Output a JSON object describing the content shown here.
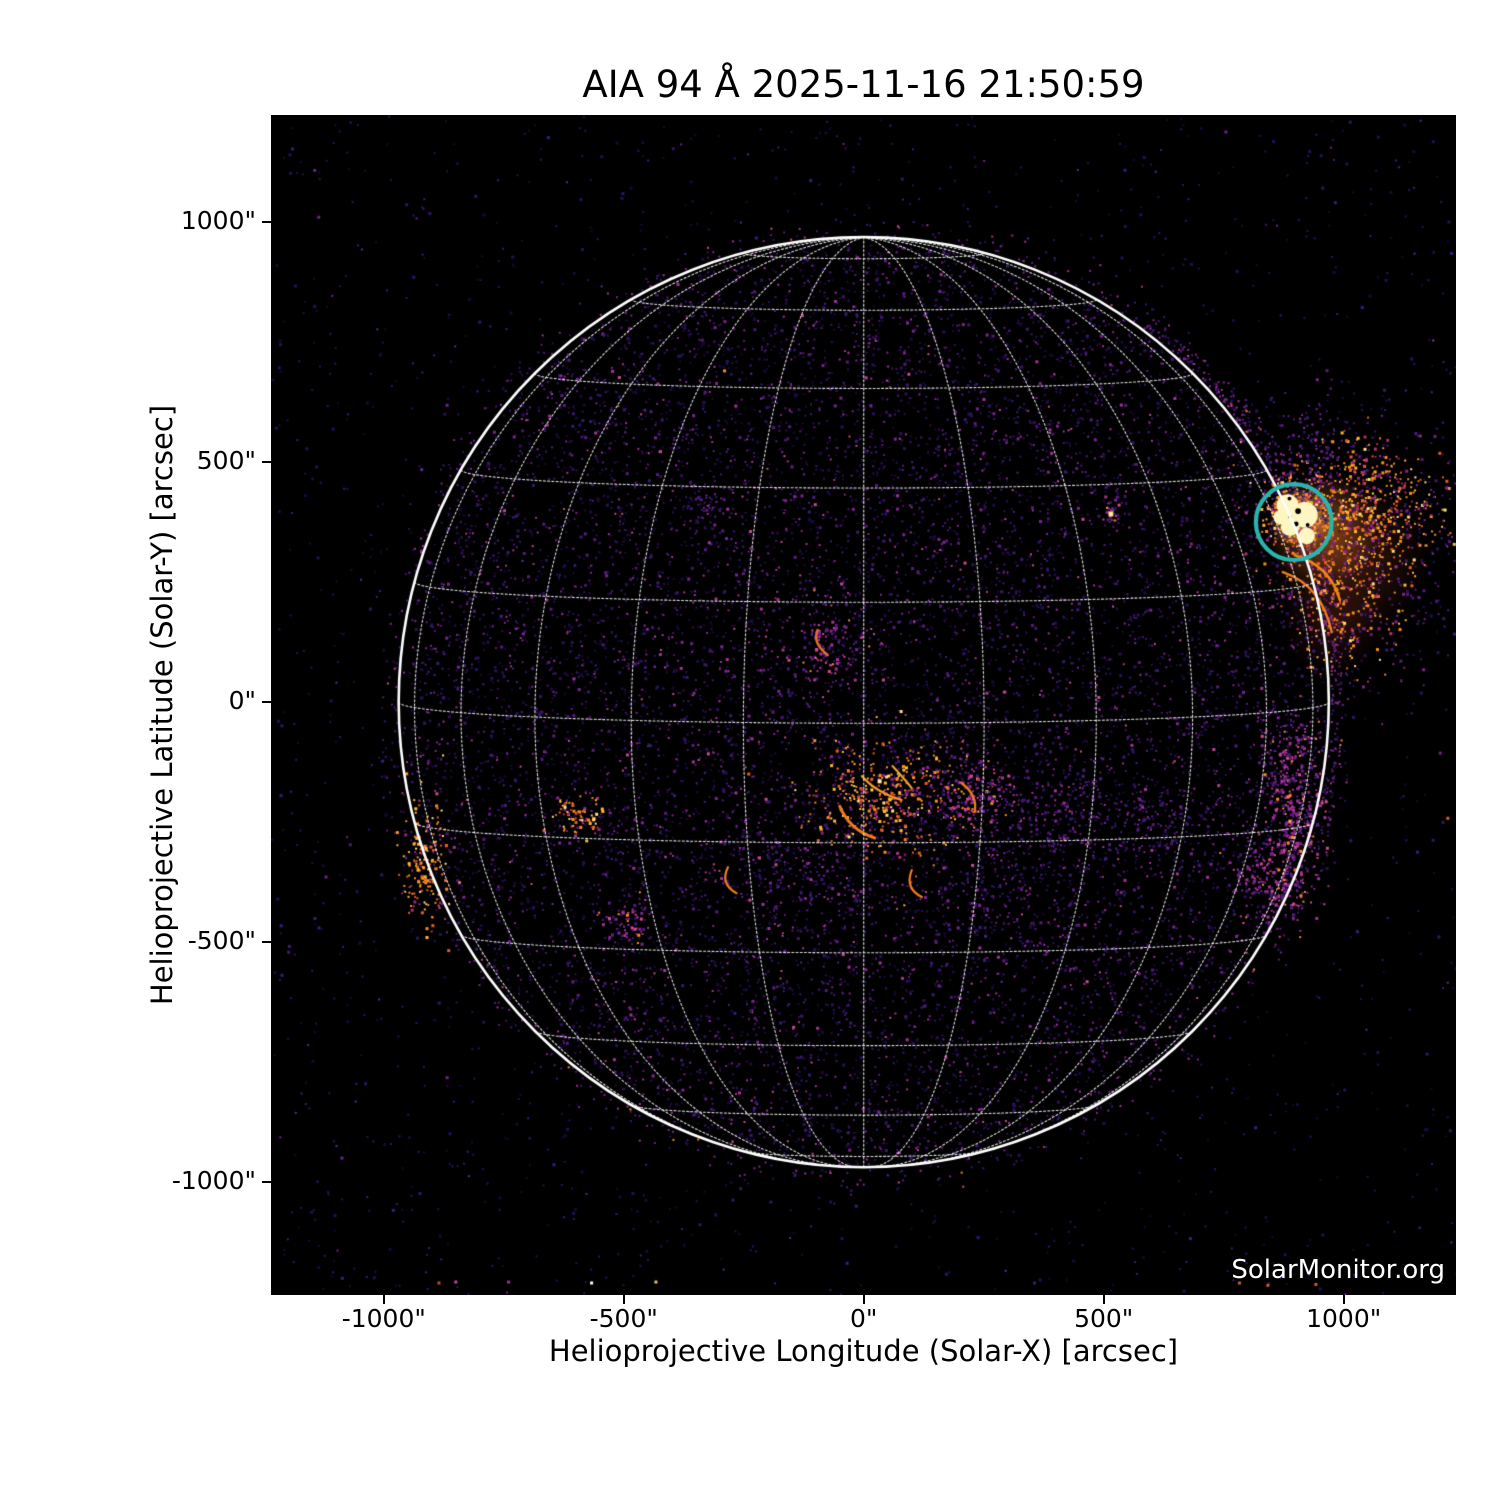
{
  "title": "AIA 94 Å 2025-11-16 21:50:59",
  "watermark": "SolarMonitor.org",
  "axes": {
    "x_label": "Helioprojective Longitude (Solar-X) [arcsec]",
    "y_label": "Helioprojective Latitude (Solar-Y) [arcsec]",
    "x_ticks": [
      {
        "v": -1000,
        "label": "-1000\""
      },
      {
        "v": -500,
        "label": "-500\""
      },
      {
        "v": 0,
        "label": "0\""
      },
      {
        "v": 500,
        "label": "500\""
      },
      {
        "v": 1000,
        "label": "1000\""
      }
    ],
    "y_ticks": [
      {
        "v": 1000,
        "label": "1000\""
      },
      {
        "v": 500,
        "label": "500\""
      },
      {
        "v": 0,
        "label": "0\""
      },
      {
        "v": -500,
        "label": "-500\""
      },
      {
        "v": -1000,
        "label": "-1000\""
      }
    ]
  },
  "colors": {
    "plot_bg": "#000000",
    "grid": "rgba(255,255,255,0.88)",
    "limb": "#ffffff",
    "text": "#000000",
    "watermark_text": "#ffffff",
    "annotation": "#2ab4ae"
  },
  "chart_data": {
    "type": "heatmap",
    "instrument": "AIA 94 Å",
    "timestamp": "2025-11-16 21:50:59",
    "x_range": [
      -1235,
      1234
    ],
    "y_range": [
      -1235,
      1223
    ],
    "solar_radius_arcsec": 969,
    "grid": {
      "on": true,
      "spacing_deg": 15,
      "b0_deg": 2.6
    },
    "annotation_circle": {
      "x": 896,
      "y": 375,
      "r": 79,
      "color": "#2ab4ae",
      "width": 4.2
    },
    "noise": {
      "seed": 2150059,
      "disk": 11000,
      "background": 2300,
      "limb_ring": 900,
      "ar_angle_rad": -0.4,
      "ar_spread": 0.35
    },
    "palettes": {
      "orange_mix": {
        "colors": [
          "#ffe08a",
          "#ffb637",
          "#f68c1f",
          "#e55d24",
          "#b03164",
          "#8f2584"
        ],
        "weights": [
          0.08,
          0.2,
          0.28,
          0.2,
          0.14,
          0.1
        ]
      },
      "magenta_mix": {
        "colors": [
          "#f68c1f",
          "#d4498a",
          "#a23394",
          "#7c2491",
          "#551c7e",
          "#3b1a6e"
        ],
        "weights": [
          0.06,
          0.12,
          0.25,
          0.27,
          0.2,
          0.1
        ]
      },
      "faint_purple": {
        "colors": [
          "#a23394",
          "#7c2491",
          "#551c7e",
          "#3b1a6e",
          "#2a1157"
        ],
        "weights": [
          0.08,
          0.2,
          0.28,
          0.26,
          0.18
        ]
      },
      "disk_noise": {
        "colors": [
          "#1b0a3c",
          "#2a1157",
          "#3b1a6e",
          "#551c7e",
          "#7c2491",
          "#a23394",
          "#c44b8c"
        ],
        "weights": [
          0.3,
          0.25,
          0.18,
          0.12,
          0.08,
          0.05,
          0.02
        ]
      },
      "bg_noise": {
        "colors": [
          "#170a38",
          "#241058",
          "#2f1668",
          "#3d1c7e",
          "#6b2390"
        ],
        "weights": [
          0.35,
          0.3,
          0.2,
          0.1,
          0.05
        ]
      }
    },
    "glows": [
      {
        "name": "ar-core-glow",
        "x": 908,
        "y": 383,
        "r": 62,
        "rgb": "255,235,160",
        "alpha": 0.95
      },
      {
        "name": "ar-halo",
        "x": 955,
        "y": 360,
        "r": 120,
        "rgb": "246,140,40",
        "alpha": 0.5
      },
      {
        "name": "ar-halo-wide",
        "x": 1010,
        "y": 300,
        "r": 170,
        "rgb": "225,95,35",
        "alpha": 0.28
      },
      {
        "name": "ar-south-glow",
        "x": 980,
        "y": 160,
        "r": 110,
        "rgb": "200,70,45",
        "alpha": 0.2
      }
    ],
    "core": {
      "color": "#fdf6c2",
      "blobs": [
        {
          "x": 883,
          "y": 410,
          "r": 23
        },
        {
          "x": 919,
          "y": 390,
          "r": 27
        },
        {
          "x": 888,
          "y": 365,
          "r": 19
        },
        {
          "x": 923,
          "y": 346,
          "r": 17
        },
        {
          "x": 869,
          "y": 385,
          "r": 15
        }
      ],
      "notches": [
        {
          "x": 905,
          "y": 398,
          "r": 6
        },
        {
          "x": 901,
          "y": 371,
          "r": 5
        },
        {
          "x": 925,
          "y": 369,
          "r": 4
        },
        {
          "x": 887,
          "y": 424,
          "r": 4
        }
      ]
    },
    "clusters": [
      {
        "name": "ar-core-rim",
        "x": 905,
        "y": 385,
        "sx": 35,
        "sy": 33,
        "count": 280,
        "palette": "orange_mix"
      },
      {
        "name": "ar-spray",
        "x": 1020,
        "y": 405,
        "sx": 85,
        "sy": 65,
        "count": 620,
        "palette": "orange_mix"
      },
      {
        "name": "ar-spray-south",
        "x": 1000,
        "y": 230,
        "sx": 70,
        "sy": 80,
        "count": 300,
        "palette": "orange_mix"
      },
      {
        "name": "ar-offlimb-veil",
        "x": 1060,
        "y": 330,
        "sx": 120,
        "sy": 150,
        "count": 400,
        "palette": "faint_purple"
      },
      {
        "name": "ar-north-veil",
        "x": 940,
        "y": 520,
        "sx": 60,
        "sy": 60,
        "count": 150,
        "palette": "faint_purple"
      },
      {
        "name": "central-ar-main",
        "x": 45,
        "y": -195,
        "sx": 85,
        "sy": 55,
        "count": 380,
        "palette": "orange_mix"
      },
      {
        "name": "central-east",
        "x": 215,
        "y": -190,
        "sx": 55,
        "sy": 48,
        "count": 240,
        "palette": "magenta_mix"
      },
      {
        "name": "central-far-east",
        "x": 420,
        "y": -235,
        "sx": 75,
        "sy": 50,
        "count": 180,
        "palette": "faint_purple"
      },
      {
        "name": "mid-disk-arc",
        "x": -70,
        "y": 120,
        "sx": 48,
        "sy": 45,
        "count": 140,
        "palette": "magenta_mix"
      },
      {
        "name": "east-limb-cluster",
        "x": -915,
        "y": -330,
        "sx": 26,
        "sy": 62,
        "count": 170,
        "palette": "orange_mix"
      },
      {
        "name": "west-limb-north",
        "x": 885,
        "y": -120,
        "sx": 35,
        "sy": 55,
        "count": 200,
        "palette": "magenta_mix"
      },
      {
        "name": "west-limb-mid",
        "x": 895,
        "y": -265,
        "sx": 30,
        "sy": 65,
        "count": 260,
        "palette": "magenta_mix"
      },
      {
        "name": "west-limb-south",
        "x": 850,
        "y": -370,
        "sx": 38,
        "sy": 50,
        "count": 210,
        "palette": "magenta_mix"
      },
      {
        "name": "south-web-east",
        "x": 270,
        "y": -420,
        "sx": 85,
        "sy": 65,
        "count": 150,
        "palette": "faint_purple"
      },
      {
        "name": "south-veil",
        "x": -120,
        "y": -330,
        "sx": 95,
        "sy": 80,
        "count": 170,
        "palette": "faint_purple"
      },
      {
        "name": "south-west-knot",
        "x": -495,
        "y": -458,
        "sx": 22,
        "sy": 22,
        "count": 60,
        "palette": "magenta_mix"
      },
      {
        "name": "sw-orange-knot",
        "x": -600,
        "y": -235,
        "sx": 26,
        "sy": 20,
        "count": 80,
        "palette": "orange_mix"
      },
      {
        "name": "se-web",
        "x": 620,
        "y": -250,
        "sx": 70,
        "sy": 55,
        "count": 130,
        "palette": "faint_purple"
      },
      {
        "name": "nw-faint",
        "x": -340,
        "y": 420,
        "sx": 30,
        "sy": 25,
        "count": 45,
        "palette": "faint_purple"
      },
      {
        "name": "compact-rim",
        "x": 515,
        "y": 392,
        "sx": 10,
        "sy": 10,
        "count": 25,
        "palette": "magenta_mix"
      }
    ],
    "filaments": [
      {
        "name": "central-arc-south",
        "from": [
          -50,
          -217
        ],
        "ctrl": [
          -29,
          -267
        ],
        "to": [
          23,
          -283
        ],
        "color": "#ef7c1e",
        "width": 3
      },
      {
        "name": "central-arc-mid",
        "from": [
          -4,
          -154
        ],
        "ctrl": [
          25,
          -188
        ],
        "to": [
          79,
          -204
        ],
        "color": "#f89a2a",
        "width": 2.2
      },
      {
        "name": "central-arc-ne",
        "from": [
          60,
          -133
        ],
        "ctrl": [
          85,
          -160
        ],
        "to": [
          100,
          -179
        ],
        "color": "#f2a43a",
        "width": 2
      },
      {
        "name": "east-hook",
        "from": [
          204,
          -169
        ],
        "ctrl": [
          238,
          -194
        ],
        "to": [
          231,
          -229
        ],
        "color": "#ef7c1e",
        "width": 2.2
      },
      {
        "name": "south-hook-west",
        "from": [
          -283,
          -344
        ],
        "ctrl": [
          -300,
          -379
        ],
        "to": [
          -265,
          -398
        ],
        "color": "#ef7c1e",
        "width": 2.2
      },
      {
        "name": "south-hook-east",
        "from": [
          100,
          -350
        ],
        "ctrl": [
          85,
          -388
        ],
        "to": [
          121,
          -406
        ],
        "color": "#ef7c1e",
        "width": 2.2
      },
      {
        "name": "mid-disk-c-arc",
        "from": [
          -96,
          150
        ],
        "ctrl": [
          -108,
          123
        ],
        "to": [
          -75,
          98
        ],
        "color": "#e8702a",
        "width": 2.4
      },
      {
        "name": "ar-loop-upper",
        "from": [
          898,
          306
        ],
        "ctrl": [
          971,
          285
        ],
        "to": [
          992,
          213
        ],
        "color": "#f2831f",
        "width": 2.6
      },
      {
        "name": "ar-loop-lower",
        "from": [
          873,
          271
        ],
        "ctrl": [
          954,
          244
        ],
        "to": [
          975,
          146
        ],
        "color": "#ef7c1e",
        "width": 2.4
      }
    ],
    "bright_dots": [
      {
        "x": 33,
        "y": -165,
        "color": "#fff1a0",
        "s": 4
      },
      {
        "x": 52,
        "y": -154,
        "color": "#ffd44d",
        "s": 3
      },
      {
        "x": 17,
        "y": -183,
        "color": "#ffda58",
        "s": 3
      },
      {
        "x": 75,
        "y": -190,
        "color": "#f7b337",
        "s": 3
      },
      {
        "x": -912,
        "y": -305,
        "color": "#ffd34f",
        "s": 3
      },
      {
        "x": -917,
        "y": -345,
        "color": "#ff9a2b",
        "s": 3
      },
      {
        "x": -908,
        "y": -372,
        "color": "#f68c1f",
        "s": 3
      },
      {
        "x": 888,
        "y": -248,
        "color": "#ffb637",
        "s": 3
      },
      {
        "x": 893,
        "y": -282,
        "color": "#f68c1f",
        "s": 3
      },
      {
        "x": 515,
        "y": 392,
        "color": "#ffd84f",
        "s": 5
      },
      {
        "x": 515,
        "y": 392,
        "color": "#fff6c8",
        "s": 3
      },
      {
        "x": -290,
        "y": 690,
        "color": "#f68c1f",
        "s": 3
      },
      {
        "x": 1215,
        "y": 460,
        "color": "#e55d24",
        "s": 3
      },
      {
        "x": 1220,
        "y": 445,
        "color": "#f68c1f",
        "s": 3
      },
      {
        "x": 1217,
        "y": -242,
        "color": "#e55d24",
        "s": 3
      },
      {
        "x": -885,
        "y": -1210,
        "color": "#d04040",
        "s": 3
      },
      {
        "x": -850,
        "y": -1208,
        "color": "#c44b8c",
        "s": 3
      },
      {
        "x": -740,
        "y": -1208,
        "color": "#a23394",
        "s": 3
      },
      {
        "x": -567,
        "y": -1210,
        "color": "#ffffff",
        "s": 3
      },
      {
        "x": -433,
        "y": -1208,
        "color": "#e8c860",
        "s": 3
      },
      {
        "x": 783,
        "y": -1210,
        "color": "#c86030",
        "s": 3
      },
      {
        "x": 842,
        "y": -1215,
        "color": "#c86030",
        "s": 3
      },
      {
        "x": 942,
        "y": -1213,
        "color": "#c86030",
        "s": 3
      }
    ]
  }
}
